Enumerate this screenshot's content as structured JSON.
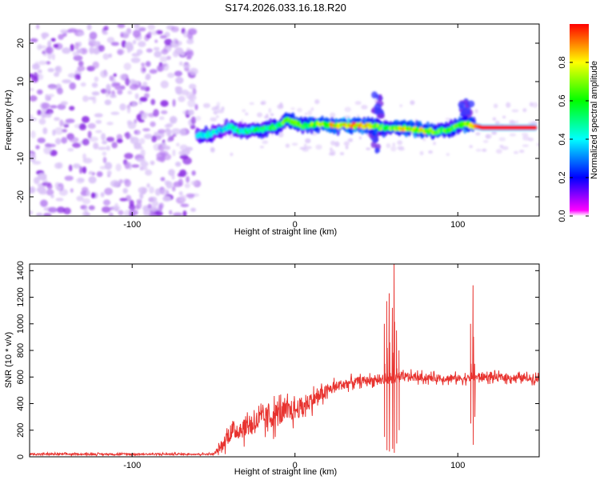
{
  "title": "S174.2026.033.16.18.R20",
  "chart_data": [
    {
      "type": "heatmap",
      "xlabel": "Height of straight line (km)",
      "ylabel": "Frequency (Hz)",
      "xlim": [
        -163,
        150
      ],
      "ylim": [
        -25,
        25
      ],
      "xticks": [
        -100,
        0,
        100
      ],
      "yticks": [
        -20,
        -10,
        0,
        10,
        20
      ],
      "colorbar": {
        "label": "Normalized spectral amplitude",
        "range": [
          0.0,
          1.0
        ],
        "ticks": [
          0.0,
          0.2,
          0.4,
          0.6,
          0.8
        ],
        "colors": [
          "#ff00ff",
          "#0000ff",
          "#00ffff",
          "#00ff00",
          "#ffff00",
          "#ff0000"
        ]
      },
      "noise_region": {
        "x_range": [
          -163,
          -60
        ],
        "amplitude": 0.1
      },
      "ridge": [
        {
          "x": -60,
          "y": -4.0,
          "amp": 0.45
        },
        {
          "x": -55,
          "y": -4.0,
          "amp": 0.5
        },
        {
          "x": -45,
          "y": -2.5,
          "amp": 0.4
        },
        {
          "x": -40,
          "y": -1.5,
          "amp": 0.45
        },
        {
          "x": -35,
          "y": -3.0,
          "amp": 0.5
        },
        {
          "x": -25,
          "y": -2.5,
          "amp": 0.55
        },
        {
          "x": -20,
          "y": -2.5,
          "amp": 0.6
        },
        {
          "x": -10,
          "y": -1.5,
          "amp": 0.6
        },
        {
          "x": -5,
          "y": 0.0,
          "amp": 0.7
        },
        {
          "x": 5,
          "y": -1.5,
          "amp": 0.65
        },
        {
          "x": 15,
          "y": -1.0,
          "amp": 0.75
        },
        {
          "x": 25,
          "y": -1.5,
          "amp": 0.85
        },
        {
          "x": 35,
          "y": -1.5,
          "amp": 0.95
        },
        {
          "x": 45,
          "y": -1.5,
          "amp": 0.9
        },
        {
          "x": 55,
          "y": -2.0,
          "amp": 0.6
        },
        {
          "x": 65,
          "y": -2.0,
          "amp": 0.8
        },
        {
          "x": 75,
          "y": -2.5,
          "amp": 0.8
        },
        {
          "x": 85,
          "y": -3.0,
          "amp": 0.75
        },
        {
          "x": 95,
          "y": -2.5,
          "amp": 0.6
        },
        {
          "x": 100,
          "y": -1.5,
          "amp": 0.7
        },
        {
          "x": 105,
          "y": -1.0,
          "amp": 0.75
        },
        {
          "x": 115,
          "y": -2.0,
          "amp": 1.0
        },
        {
          "x": 130,
          "y": -2.0,
          "amp": 1.0
        },
        {
          "x": 148,
          "y": -2.0,
          "amp": 1.0
        }
      ],
      "bursts": [
        {
          "x": 50,
          "y_range": [
            -8,
            7
          ]
        },
        {
          "x": 105,
          "y_range": [
            -2,
            5
          ]
        }
      ]
    },
    {
      "type": "line",
      "xlabel": "Height of straight line (km)",
      "ylabel": "SNR (10 * v/v)",
      "xlim": [
        -163,
        150
      ],
      "ylim": [
        0,
        1450
      ],
      "xticks": [
        -100,
        0,
        100
      ],
      "yticks": [
        0,
        200,
        400,
        600,
        800,
        1000,
        1200,
        1400
      ],
      "series": [
        {
          "color": "#e8332f",
          "envelope": [
            {
              "x": -163,
              "y": 20,
              "spread": 10
            },
            {
              "x": -50,
              "y": 20,
              "spread": 10
            },
            {
              "x": -45,
              "y": 80,
              "spread": 60
            },
            {
              "x": -40,
              "y": 180,
              "spread": 120
            },
            {
              "x": -30,
              "y": 230,
              "spread": 130
            },
            {
              "x": -20,
              "y": 280,
              "spread": 150
            },
            {
              "x": -10,
              "y": 320,
              "spread": 150
            },
            {
              "x": 0,
              "y": 350,
              "spread": 130
            },
            {
              "x": 10,
              "y": 420,
              "spread": 100
            },
            {
              "x": 20,
              "y": 500,
              "spread": 80
            },
            {
              "x": 30,
              "y": 550,
              "spread": 60
            },
            {
              "x": 40,
              "y": 570,
              "spread": 50
            },
            {
              "x": 50,
              "y": 580,
              "spread": 50
            },
            {
              "x": 55,
              "y": 580,
              "spread": 50
            },
            {
              "x": 70,
              "y": 600,
              "spread": 50
            },
            {
              "x": 90,
              "y": 590,
              "spread": 45
            },
            {
              "x": 105,
              "y": 590,
              "spread": 45
            },
            {
              "x": 115,
              "y": 600,
              "spread": 45
            },
            {
              "x": 150,
              "y": 590,
              "spread": 45
            }
          ],
          "spikes": [
            {
              "x": 55,
              "high": 1000,
              "low": 150
            },
            {
              "x": 56.5,
              "high": 1170,
              "low": 50
            },
            {
              "x": 58,
              "high": 1230,
              "low": 40
            },
            {
              "x": 60,
              "high": 1120,
              "low": 60
            },
            {
              "x": 61,
              "high": 1450,
              "low": 30
            },
            {
              "x": 62.5,
              "high": 950,
              "low": 100
            },
            {
              "x": 64,
              "high": 800,
              "low": 200
            },
            {
              "x": 108,
              "high": 1000,
              "low": 250
            },
            {
              "x": 109.5,
              "high": 1290,
              "low": 90
            },
            {
              "x": 110.5,
              "high": 700,
              "low": 300
            }
          ]
        }
      ]
    }
  ]
}
